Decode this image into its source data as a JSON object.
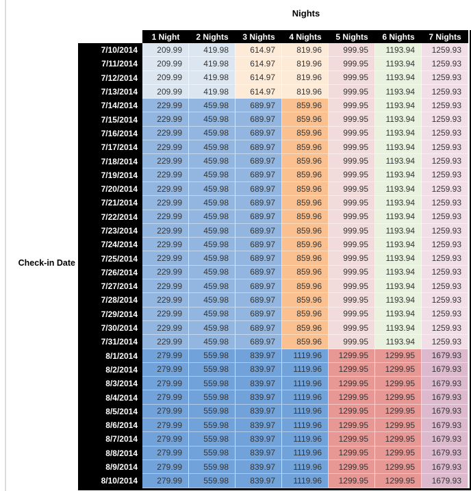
{
  "title": "Nights",
  "axis_label": "Check-in Date",
  "palette": {
    "light_blue": "#DCE6F1",
    "med_blue": "#92B6DF",
    "dark_blue": "#71A2DA",
    "light_orange": "#FDEAD7",
    "med_orange": "#FAC08F",
    "light_red": "#F2DCDB",
    "dark_red": "#E79895",
    "light_green": "#E9F1DF",
    "light_pink": "#F2DEE7",
    "mauve": "#DCB9CC",
    "header_bg": "#000000",
    "header_text": "#FFFFFF",
    "cell_text": "#333333"
  },
  "chart_data": {
    "type": "table",
    "title": "Nights",
    "row_axis_label": "Check-in Date",
    "columns": [
      "1 Night",
      "2 Nights",
      "3 Nights",
      "4 Nights",
      "5 Nights",
      "6 Nights",
      "7 Nights"
    ],
    "rows": [
      {
        "date": "7/10/2014",
        "values": [
          "209.99",
          "419.98",
          "614.97",
          "819.96",
          "999.95",
          "1193.94",
          "1259.93"
        ],
        "colors": [
          "light_blue",
          "light_blue",
          "light_orange",
          "light_orange",
          "light_red",
          "light_green",
          "light_pink"
        ]
      },
      {
        "date": "7/11/2014",
        "values": [
          "209.99",
          "419.98",
          "614.97",
          "819.96",
          "999.95",
          "1193.94",
          "1259.93"
        ],
        "colors": [
          "light_blue",
          "light_blue",
          "light_orange",
          "light_orange",
          "light_red",
          "light_green",
          "light_pink"
        ]
      },
      {
        "date": "7/12/2014",
        "values": [
          "209.99",
          "419.98",
          "614.97",
          "819.96",
          "999.95",
          "1193.94",
          "1259.93"
        ],
        "colors": [
          "light_blue",
          "light_blue",
          "light_orange",
          "light_orange",
          "light_red",
          "light_green",
          "light_pink"
        ]
      },
      {
        "date": "7/13/2014",
        "values": [
          "209.99",
          "419.98",
          "614.97",
          "819.96",
          "999.95",
          "1193.94",
          "1259.93"
        ],
        "colors": [
          "light_blue",
          "light_blue",
          "light_orange",
          "light_orange",
          "light_red",
          "light_green",
          "light_pink"
        ]
      },
      {
        "date": "7/14/2014",
        "values": [
          "229.99",
          "459.98",
          "689.97",
          "859.96",
          "999.95",
          "1193.94",
          "1259.93"
        ],
        "colors": [
          "med_blue",
          "med_blue",
          "med_blue",
          "med_orange",
          "light_red",
          "light_green",
          "light_pink"
        ]
      },
      {
        "date": "7/15/2014",
        "values": [
          "229.99",
          "459.98",
          "689.97",
          "859.96",
          "999.95",
          "1193.94",
          "1259.93"
        ],
        "colors": [
          "med_blue",
          "med_blue",
          "med_blue",
          "med_orange",
          "light_red",
          "light_green",
          "light_pink"
        ]
      },
      {
        "date": "7/16/2014",
        "values": [
          "229.99",
          "459.98",
          "689.97",
          "859.96",
          "999.95",
          "1193.94",
          "1259.93"
        ],
        "colors": [
          "med_blue",
          "med_blue",
          "med_blue",
          "med_orange",
          "light_red",
          "light_green",
          "light_pink"
        ]
      },
      {
        "date": "7/17/2014",
        "values": [
          "229.99",
          "459.98",
          "689.97",
          "859.96",
          "999.95",
          "1193.94",
          "1259.93"
        ],
        "colors": [
          "med_blue",
          "med_blue",
          "med_blue",
          "med_orange",
          "light_red",
          "light_green",
          "light_pink"
        ]
      },
      {
        "date": "7/18/2014",
        "values": [
          "229.99",
          "459.98",
          "689.97",
          "859.96",
          "999.95",
          "1193.94",
          "1259.93"
        ],
        "colors": [
          "med_blue",
          "med_blue",
          "med_blue",
          "med_orange",
          "light_red",
          "light_green",
          "light_pink"
        ]
      },
      {
        "date": "7/19/2014",
        "values": [
          "229.99",
          "459.98",
          "689.97",
          "859.96",
          "999.95",
          "1193.94",
          "1259.93"
        ],
        "colors": [
          "med_blue",
          "med_blue",
          "med_blue",
          "med_orange",
          "light_red",
          "light_green",
          "light_pink"
        ]
      },
      {
        "date": "7/20/2014",
        "values": [
          "229.99",
          "459.98",
          "689.97",
          "859.96",
          "999.95",
          "1193.94",
          "1259.93"
        ],
        "colors": [
          "med_blue",
          "med_blue",
          "med_blue",
          "med_orange",
          "light_red",
          "light_green",
          "light_pink"
        ]
      },
      {
        "date": "7/21/2014",
        "values": [
          "229.99",
          "459.98",
          "689.97",
          "859.96",
          "999.95",
          "1193.94",
          "1259.93"
        ],
        "colors": [
          "med_blue",
          "med_blue",
          "med_blue",
          "med_orange",
          "light_red",
          "light_green",
          "light_pink"
        ]
      },
      {
        "date": "7/22/2014",
        "values": [
          "229.99",
          "459.98",
          "689.97",
          "859.96",
          "999.95",
          "1193.94",
          "1259.93"
        ],
        "colors": [
          "med_blue",
          "med_blue",
          "med_blue",
          "med_orange",
          "light_red",
          "light_green",
          "light_pink"
        ]
      },
      {
        "date": "7/23/2014",
        "values": [
          "229.99",
          "459.98",
          "689.97",
          "859.96",
          "999.95",
          "1193.94",
          "1259.93"
        ],
        "colors": [
          "med_blue",
          "med_blue",
          "med_blue",
          "med_orange",
          "light_red",
          "light_green",
          "light_pink"
        ]
      },
      {
        "date": "7/24/2014",
        "values": [
          "229.99",
          "459.98",
          "689.97",
          "859.96",
          "999.95",
          "1193.94",
          "1259.93"
        ],
        "colors": [
          "med_blue",
          "med_blue",
          "med_blue",
          "med_orange",
          "light_red",
          "light_green",
          "light_pink"
        ]
      },
      {
        "date": "7/25/2014",
        "values": [
          "229.99",
          "459.98",
          "689.97",
          "859.96",
          "999.95",
          "1193.94",
          "1259.93"
        ],
        "colors": [
          "med_blue",
          "med_blue",
          "med_blue",
          "med_orange",
          "light_red",
          "light_green",
          "light_pink"
        ]
      },
      {
        "date": "7/26/2014",
        "values": [
          "229.99",
          "459.98",
          "689.97",
          "859.96",
          "999.95",
          "1193.94",
          "1259.93"
        ],
        "colors": [
          "med_blue",
          "med_blue",
          "med_blue",
          "med_orange",
          "light_red",
          "light_green",
          "light_pink"
        ]
      },
      {
        "date": "7/27/2014",
        "values": [
          "229.99",
          "459.98",
          "689.97",
          "859.96",
          "999.95",
          "1193.94",
          "1259.93"
        ],
        "colors": [
          "med_blue",
          "med_blue",
          "med_blue",
          "med_orange",
          "light_red",
          "light_green",
          "light_pink"
        ]
      },
      {
        "date": "7/28/2014",
        "values": [
          "229.99",
          "459.98",
          "689.97",
          "859.96",
          "999.95",
          "1193.94",
          "1259.93"
        ],
        "colors": [
          "med_blue",
          "med_blue",
          "med_blue",
          "med_orange",
          "light_red",
          "light_green",
          "light_pink"
        ]
      },
      {
        "date": "7/29/2014",
        "values": [
          "229.99",
          "459.98",
          "689.97",
          "859.96",
          "999.95",
          "1193.94",
          "1259.93"
        ],
        "colors": [
          "med_blue",
          "med_blue",
          "med_blue",
          "med_orange",
          "light_red",
          "light_green",
          "light_pink"
        ]
      },
      {
        "date": "7/30/2014",
        "values": [
          "229.99",
          "459.98",
          "689.97",
          "859.96",
          "999.95",
          "1193.94",
          "1259.93"
        ],
        "colors": [
          "med_blue",
          "med_blue",
          "med_blue",
          "med_orange",
          "light_red",
          "light_green",
          "light_pink"
        ]
      },
      {
        "date": "7/31/2014",
        "values": [
          "229.99",
          "459.98",
          "689.97",
          "859.96",
          "999.95",
          "1193.94",
          "1259.93"
        ],
        "colors": [
          "med_blue",
          "med_blue",
          "med_blue",
          "med_orange",
          "light_red",
          "light_green",
          "light_pink"
        ]
      },
      {
        "date": "8/1/2014",
        "values": [
          "279.99",
          "559.98",
          "839.97",
          "1119.96",
          "1299.95",
          "1299.95",
          "1679.93"
        ],
        "colors": [
          "dark_blue",
          "dark_blue",
          "dark_blue",
          "dark_blue",
          "dark_red",
          "dark_red",
          "mauve"
        ]
      },
      {
        "date": "8/2/2014",
        "values": [
          "279.99",
          "559.98",
          "839.97",
          "1119.96",
          "1299.95",
          "1299.95",
          "1679.93"
        ],
        "colors": [
          "dark_blue",
          "dark_blue",
          "dark_blue",
          "dark_blue",
          "dark_red",
          "dark_red",
          "mauve"
        ]
      },
      {
        "date": "8/3/2014",
        "values": [
          "279.99",
          "559.98",
          "839.97",
          "1119.96",
          "1299.95",
          "1299.95",
          "1679.93"
        ],
        "colors": [
          "dark_blue",
          "dark_blue",
          "dark_blue",
          "dark_blue",
          "dark_red",
          "dark_red",
          "mauve"
        ]
      },
      {
        "date": "8/4/2014",
        "values": [
          "279.99",
          "559.98",
          "839.97",
          "1119.96",
          "1299.95",
          "1299.95",
          "1679.93"
        ],
        "colors": [
          "dark_blue",
          "dark_blue",
          "dark_blue",
          "dark_blue",
          "dark_red",
          "dark_red",
          "mauve"
        ]
      },
      {
        "date": "8/5/2014",
        "values": [
          "279.99",
          "559.98",
          "839.97",
          "1119.96",
          "1299.95",
          "1299.95",
          "1679.93"
        ],
        "colors": [
          "dark_blue",
          "dark_blue",
          "dark_blue",
          "dark_blue",
          "dark_red",
          "dark_red",
          "mauve"
        ]
      },
      {
        "date": "8/6/2014",
        "values": [
          "279.99",
          "559.98",
          "839.97",
          "1119.96",
          "1299.95",
          "1299.95",
          "1679.93"
        ],
        "colors": [
          "dark_blue",
          "dark_blue",
          "dark_blue",
          "dark_blue",
          "dark_red",
          "dark_red",
          "mauve"
        ]
      },
      {
        "date": "8/7/2014",
        "values": [
          "279.99",
          "559.98",
          "839.97",
          "1119.96",
          "1299.95",
          "1299.95",
          "1679.93"
        ],
        "colors": [
          "dark_blue",
          "dark_blue",
          "dark_blue",
          "dark_blue",
          "dark_red",
          "dark_red",
          "mauve"
        ]
      },
      {
        "date": "8/8/2014",
        "values": [
          "279.99",
          "559.98",
          "839.97",
          "1119.96",
          "1299.95",
          "1299.95",
          "1679.93"
        ],
        "colors": [
          "dark_blue",
          "dark_blue",
          "dark_blue",
          "dark_blue",
          "dark_red",
          "dark_red",
          "mauve"
        ]
      },
      {
        "date": "8/9/2014",
        "values": [
          "279.99",
          "559.98",
          "839.97",
          "1119.96",
          "1299.95",
          "1299.95",
          "1679.93"
        ],
        "colors": [
          "dark_blue",
          "dark_blue",
          "dark_blue",
          "dark_blue",
          "dark_red",
          "dark_red",
          "mauve"
        ]
      },
      {
        "date": "8/10/2014",
        "values": [
          "279.99",
          "559.98",
          "839.97",
          "1119.96",
          "1299.95",
          "1299.95",
          "1679.93"
        ],
        "colors": [
          "dark_blue",
          "dark_blue",
          "dark_blue",
          "dark_blue",
          "dark_red",
          "dark_red",
          "mauve"
        ]
      }
    ]
  }
}
